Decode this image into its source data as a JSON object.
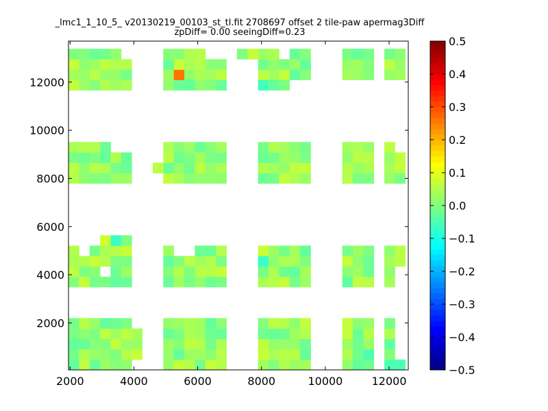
{
  "figure": {
    "title_line1": "_lmc1_1_10_5_ v20130219_00103_st_tl.fit 2708697 offset 2 tile-paw apermag3Diff",
    "title_line2": "zpDiff= 0.00 seeingDiff=0.23"
  },
  "chart_data": {
    "type": "heatmap",
    "title": "_lmc1_1_10_5_ v20130219_00103_st_tl.fit 2708697 offset 2 tile-paw apermag3Diff",
    "subtitle": "zpDiff= 0.00 seeingDiff=0.23",
    "xlabel": "",
    "ylabel": "",
    "xlim": [
      1950,
      12600
    ],
    "ylim": [
      50,
      13700
    ],
    "x_ticks": [
      2000,
      4000,
      6000,
      8000,
      10000,
      12000
    ],
    "y_ticks": [
      2000,
      4000,
      6000,
      8000,
      10000,
      12000
    ],
    "grid": false,
    "colorbar": {
      "colormap": "jet",
      "min": -0.5,
      "max": 0.5,
      "ticks": [
        0.5,
        0.4,
        0.3,
        0.2,
        0.1,
        0.0,
        -0.1,
        -0.2,
        -0.3,
        -0.4,
        -0.5
      ],
      "tick_labels": [
        "0.5",
        "0.4",
        "0.3",
        "0.2",
        "0.1",
        "0.0",
        "−0.1",
        "−0.2",
        "−0.3",
        "−0.4",
        "−0.5"
      ]
    },
    "cell_size": [
      330,
      430
    ],
    "x_origin": 1950,
    "y_origin": 50,
    "col_groups": [
      [
        0,
        5
      ],
      [
        9,
        14
      ],
      [
        18,
        22
      ],
      [
        26,
        28
      ],
      [
        30,
        31
      ]
    ],
    "row_groups": [
      [
        0,
        4
      ],
      [
        8,
        11
      ],
      [
        18,
        21
      ],
      [
        27,
        30
      ]
    ],
    "missing_cells": [
      [
        31,
        1
      ],
      [
        31,
        2
      ],
      [
        31,
        3
      ],
      [
        31,
        4
      ],
      [
        6,
        4
      ],
      [
        31,
        8
      ],
      [
        31,
        9
      ],
      [
        1,
        11
      ],
      [
        23,
        11
      ],
      [
        10,
        11
      ],
      [
        11,
        11
      ],
      [
        23,
        21
      ],
      [
        7,
        21
      ],
      [
        6,
        21
      ],
      [
        5,
        21
      ],
      [
        4,
        21
      ],
      [
        31,
        21
      ],
      [
        26,
        27
      ],
      [
        27,
        27
      ],
      [
        28,
        27
      ],
      [
        29,
        27
      ],
      [
        30,
        27
      ],
      [
        31,
        27
      ],
      [
        6,
        27
      ],
      [
        21,
        27
      ],
      [
        22,
        27
      ],
      [
        20,
        30
      ],
      [
        5,
        30
      ],
      [
        6,
        30
      ],
      [
        3,
        9
      ],
      [
        13,
        30
      ],
      [
        14,
        30
      ],
      [
        8,
        30
      ],
      [
        6,
        28
      ],
      [
        6,
        29
      ]
    ],
    "extra_cells": [
      [
        6,
        1
      ],
      [
        6,
        2
      ],
      [
        6,
        3
      ],
      [
        8,
        19
      ],
      [
        10,
        29
      ],
      [
        11,
        29
      ],
      [
        12,
        29
      ],
      [
        10,
        30
      ],
      [
        11,
        30
      ],
      [
        12,
        30
      ],
      [
        16,
        30
      ],
      [
        17,
        30
      ],
      [
        3,
        12
      ],
      [
        4,
        12
      ],
      [
        5,
        12
      ]
    ],
    "highlight_cells": [
      {
        "col": 10,
        "row": 28,
        "value": 0.26
      },
      {
        "col": 16,
        "row": 28,
        "value": 0.06
      },
      {
        "col": 17,
        "row": 28,
        "value": 0.06
      },
      {
        "col": 15,
        "row": 27,
        "value": -0.04
      },
      {
        "col": 3,
        "row": 12,
        "value": 0.08
      },
      {
        "col": 4,
        "row": 12,
        "value": -0.07
      },
      {
        "col": 18,
        "row": 10,
        "value": -0.07
      },
      {
        "col": 18,
        "row": 11,
        "value": 0.07
      },
      {
        "col": 18,
        "row": 27,
        "value": -0.06
      },
      {
        "col": 18,
        "row": 28,
        "value": 0.06
      },
      {
        "col": 28,
        "row": 1,
        "value": -0.05
      },
      {
        "col": 29,
        "row": 1,
        "value": -0.04
      },
      {
        "col": 30,
        "row": 0,
        "value": -0.05
      },
      {
        "col": 31,
        "row": 0,
        "value": -0.05
      },
      {
        "col": 29,
        "row": 4,
        "value": -0.06
      },
      {
        "col": 6,
        "row": 1,
        "value": 0.07
      },
      {
        "col": 13,
        "row": 11,
        "value": -0.02
      },
      {
        "col": 12,
        "row": 11,
        "value": -0.02
      }
    ],
    "base_value_range": [
      -0.03,
      0.07
    ]
  }
}
